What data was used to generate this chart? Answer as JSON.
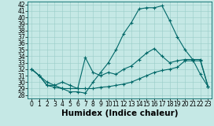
{
  "xlabel": "Humidex (Indice chaleur)",
  "xlim": [
    -0.5,
    23.5
  ],
  "ylim": [
    27.5,
    42.5
  ],
  "xticks": [
    0,
    1,
    2,
    3,
    4,
    5,
    6,
    7,
    8,
    9,
    10,
    11,
    12,
    13,
    14,
    15,
    16,
    17,
    18,
    19,
    20,
    21,
    22,
    23
  ],
  "yticks": [
    28,
    29,
    30,
    31,
    32,
    33,
    34,
    35,
    36,
    37,
    38,
    39,
    40,
    41,
    42
  ],
  "bg_color": "#c5e8e5",
  "line_color": "#006868",
  "grid_color": "#99ccc8",
  "line1_x": [
    0,
    1,
    2,
    3,
    4,
    5,
    6,
    7,
    8,
    9,
    10,
    11,
    12,
    13,
    14,
    15,
    16,
    17,
    18,
    19,
    20,
    21,
    22,
    23
  ],
  "line1_y": [
    32.0,
    31.0,
    30.0,
    29.5,
    29.0,
    28.5,
    28.5,
    28.3,
    30.0,
    31.5,
    33.0,
    35.0,
    37.5,
    39.2,
    41.3,
    41.5,
    41.5,
    41.8,
    39.5,
    37.0,
    35.0,
    33.5,
    31.2,
    29.3
  ],
  "line2_x": [
    0,
    1,
    2,
    3,
    4,
    5,
    6,
    7,
    8,
    9,
    10,
    11,
    12,
    13,
    14,
    15,
    16,
    17,
    18,
    19,
    20,
    21,
    22,
    23
  ],
  "line2_y": [
    32.0,
    31.0,
    29.5,
    29.5,
    30.0,
    29.5,
    29.0,
    33.8,
    31.5,
    31.0,
    31.5,
    31.2,
    32.0,
    32.5,
    33.5,
    34.5,
    35.2,
    34.0,
    33.0,
    33.3,
    33.5,
    33.5,
    33.5,
    29.3
  ],
  "line3_x": [
    0,
    1,
    2,
    3,
    4,
    5,
    6,
    7,
    8,
    9,
    10,
    11,
    12,
    13,
    14,
    15,
    16,
    17,
    18,
    19,
    20,
    21,
    22,
    23
  ],
  "line3_y": [
    32.0,
    31.0,
    29.5,
    29.2,
    29.0,
    29.0,
    29.0,
    29.0,
    29.0,
    29.2,
    29.3,
    29.5,
    29.7,
    30.0,
    30.5,
    31.0,
    31.5,
    31.8,
    32.0,
    32.3,
    33.3,
    33.3,
    33.3,
    29.3
  ],
  "tick_fontsize": 5.5,
  "label_fontsize": 7.5
}
